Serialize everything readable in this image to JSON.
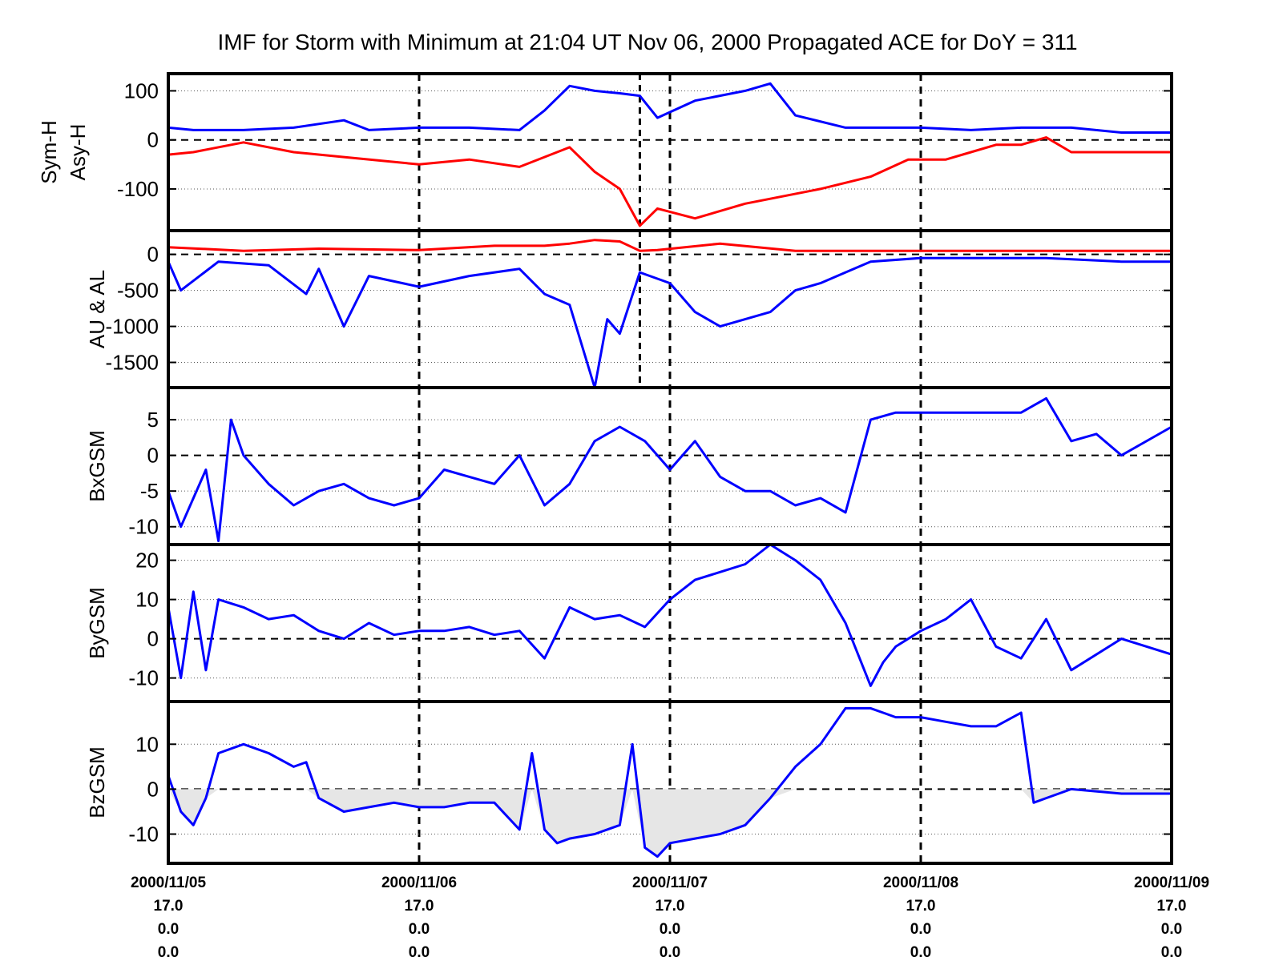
{
  "title": "IMF for Storm with Minimum at 21:04 UT Nov 06, 2000  Propagated ACE for DoY = 311",
  "colors": {
    "blue": "#0000ff",
    "red": "#ff0000",
    "navy": "#000080",
    "fill": "#e6e6e6",
    "frame": "#000000"
  },
  "x_ticks": [
    {
      "x": 0,
      "date": "2000/11/05",
      "l2": "17.0",
      "l3": "0.0",
      "l4": "0.0"
    },
    {
      "x": 1,
      "date": "2000/11/06",
      "l2": "17.0",
      "l3": "0.0",
      "l4": "0.0"
    },
    {
      "x": 2,
      "date": "2000/11/07",
      "l2": "17.0",
      "l3": "0.0",
      "l4": "0.0"
    },
    {
      "x": 3,
      "date": "2000/11/08",
      "l2": "17.0",
      "l3": "0.0",
      "l4": "0.0"
    },
    {
      "x": 4,
      "date": "2000/11/09",
      "l2": "17.0",
      "l3": "0.0",
      "l4": "0.0"
    }
  ],
  "chart_data": [
    {
      "type": "line",
      "ylabel": [
        "Sym-H",
        "Asy-H"
      ],
      "ylim": [
        -185,
        135
      ],
      "yticks": [
        100,
        0,
        -100
      ],
      "storm_min_day": 1.88,
      "grid": true,
      "series": [
        {
          "color": "blue",
          "x": [
            0,
            0.1,
            0.3,
            0.5,
            0.7,
            0.8,
            1.0,
            1.2,
            1.4,
            1.5,
            1.6,
            1.7,
            1.8,
            1.88,
            1.95,
            2.1,
            2.3,
            2.4,
            2.5,
            2.7,
            3.0,
            3.2,
            3.4,
            3.5,
            3.6,
            3.8,
            4.0
          ],
          "y": [
            25,
            20,
            20,
            25,
            40,
            20,
            25,
            25,
            20,
            60,
            110,
            100,
            95,
            90,
            45,
            80,
            100,
            115,
            50,
            25,
            25,
            20,
            25,
            25,
            25,
            15,
            15
          ]
        },
        {
          "color": "red",
          "x": [
            0,
            0.1,
            0.3,
            0.5,
            0.7,
            1.0,
            1.2,
            1.4,
            1.5,
            1.6,
            1.7,
            1.8,
            1.88,
            1.95,
            2.1,
            2.3,
            2.6,
            2.8,
            2.95,
            3.1,
            3.2,
            3.3,
            3.4,
            3.5,
            3.6,
            3.8,
            4.0
          ],
          "y": [
            -30,
            -25,
            -5,
            -25,
            -35,
            -50,
            -40,
            -55,
            -35,
            -15,
            -65,
            -100,
            -175,
            -140,
            -160,
            -130,
            -100,
            -75,
            -40,
            -40,
            -25,
            -10,
            -10,
            5,
            -25,
            -25,
            -25
          ]
        }
      ]
    },
    {
      "type": "line",
      "ylabel": [
        "AU & AL"
      ],
      "ylim": [
        -1850,
        330
      ],
      "yticks": [
        0,
        -500,
        -1000,
        -1500
      ],
      "storm_min_day": 1.88,
      "grid": true,
      "series": [
        {
          "color": "red",
          "x": [
            0,
            0.3,
            0.6,
            1.0,
            1.3,
            1.5,
            1.6,
            1.7,
            1.8,
            1.88,
            1.95,
            2.2,
            2.5,
            2.8,
            3.0,
            3.5,
            4.0
          ],
          "y": [
            100,
            50,
            80,
            60,
            120,
            120,
            150,
            200,
            180,
            50,
            60,
            150,
            50,
            50,
            50,
            50,
            50
          ]
        },
        {
          "color": "blue",
          "x": [
            0,
            0.05,
            0.2,
            0.4,
            0.55,
            0.6,
            0.7,
            0.8,
            1.0,
            1.2,
            1.4,
            1.5,
            1.6,
            1.7,
            1.75,
            1.8,
            1.88,
            2.0,
            2.1,
            2.2,
            2.4,
            2.5,
            2.6,
            2.7,
            2.8,
            3.0,
            3.5,
            3.8,
            4.0
          ],
          "y": [
            -100,
            -500,
            -100,
            -150,
            -550,
            -200,
            -1000,
            -300,
            -450,
            -300,
            -200,
            -550,
            -700,
            -1850,
            -900,
            -1100,
            -250,
            -400,
            -800,
            -1000,
            -800,
            -500,
            -400,
            -250,
            -100,
            -50,
            -50,
            -100,
            -100
          ]
        }
      ]
    },
    {
      "type": "line",
      "ylabel": [
        "BxGSM"
      ],
      "ylim": [
        -12.5,
        9.5
      ],
      "yticks": [
        5,
        0,
        -5,
        -10
      ],
      "grid": true,
      "series": [
        {
          "color": "blue",
          "x": [
            0,
            0.05,
            0.15,
            0.2,
            0.25,
            0.3,
            0.4,
            0.5,
            0.6,
            0.7,
            0.8,
            0.9,
            1.0,
            1.1,
            1.2,
            1.3,
            1.4,
            1.5,
            1.6,
            1.7,
            1.8,
            1.9,
            2.0,
            2.1,
            2.2,
            2.3,
            2.4,
            2.5,
            2.6,
            2.7,
            2.8,
            2.9,
            3.0,
            3.2,
            3.4,
            3.5,
            3.6,
            3.7,
            3.8,
            4.0
          ],
          "y": [
            -5,
            -10,
            -2,
            -12,
            5,
            0,
            -4,
            -7,
            -5,
            -4,
            -6,
            -7,
            -6,
            -2,
            -3,
            -4,
            0,
            -7,
            -4,
            2,
            4,
            2,
            -2,
            2,
            -3,
            -5,
            -5,
            -7,
            -6,
            -8,
            5,
            6,
            6,
            6,
            6,
            8,
            2,
            3,
            0,
            4
          ]
        }
      ]
    },
    {
      "type": "line",
      "ylabel": [
        "ByGSM"
      ],
      "ylim": [
        -16,
        24
      ],
      "yticks": [
        20,
        10,
        0,
        -10
      ],
      "grid": true,
      "series": [
        {
          "color": "blue",
          "x": [
            0,
            0.05,
            0.1,
            0.15,
            0.2,
            0.3,
            0.4,
            0.5,
            0.6,
            0.7,
            0.8,
            0.9,
            1.0,
            1.1,
            1.2,
            1.3,
            1.4,
            1.5,
            1.6,
            1.7,
            1.8,
            1.9,
            2.0,
            2.1,
            2.2,
            2.3,
            2.4,
            2.5,
            2.6,
            2.7,
            2.8,
            2.85,
            2.9,
            3.0,
            3.1,
            3.2,
            3.3,
            3.4,
            3.5,
            3.6,
            3.8,
            4.0
          ],
          "y": [
            8,
            -10,
            12,
            -8,
            10,
            8,
            5,
            6,
            2,
            0,
            4,
            1,
            2,
            2,
            3,
            1,
            2,
            -5,
            8,
            5,
            6,
            3,
            10,
            15,
            17,
            19,
            24,
            20,
            15,
            4,
            -12,
            -6,
            -2,
            2,
            5,
            10,
            -2,
            -5,
            5,
            -8,
            0,
            -4
          ]
        }
      ]
    },
    {
      "type": "area",
      "ylabel": [
        "BzGSM"
      ],
      "ylim": [
        -16.5,
        19.5
      ],
      "yticks": [
        10,
        0,
        -10
      ],
      "grid": true,
      "series": [
        {
          "color": "blue",
          "x": [
            0,
            0.05,
            0.1,
            0.15,
            0.2,
            0.3,
            0.4,
            0.5,
            0.55,
            0.6,
            0.7,
            0.8,
            0.9,
            1.0,
            1.1,
            1.2,
            1.3,
            1.4,
            1.45,
            1.5,
            1.55,
            1.6,
            1.7,
            1.8,
            1.85,
            1.9,
            1.95,
            2.0,
            2.1,
            2.2,
            2.3,
            2.4,
            2.5,
            2.6,
            2.7,
            2.8,
            2.85,
            2.9,
            3.0,
            3.1,
            3.2,
            3.3,
            3.4,
            3.45,
            3.5,
            3.6,
            3.8,
            4.0
          ],
          "y": [
            3,
            -5,
            -8,
            -2,
            8,
            10,
            8,
            5,
            6,
            -2,
            -5,
            -4,
            -3,
            -4,
            -4,
            -3,
            -3,
            -9,
            8,
            -9,
            -12,
            -11,
            -10,
            -8,
            10,
            -13,
            -15,
            -12,
            -11,
            -10,
            -8,
            -2,
            5,
            10,
            18,
            18,
            17,
            16,
            16,
            15,
            14,
            14,
            17,
            -3,
            -2,
            0,
            -1,
            -1
          ]
        }
      ]
    }
  ]
}
